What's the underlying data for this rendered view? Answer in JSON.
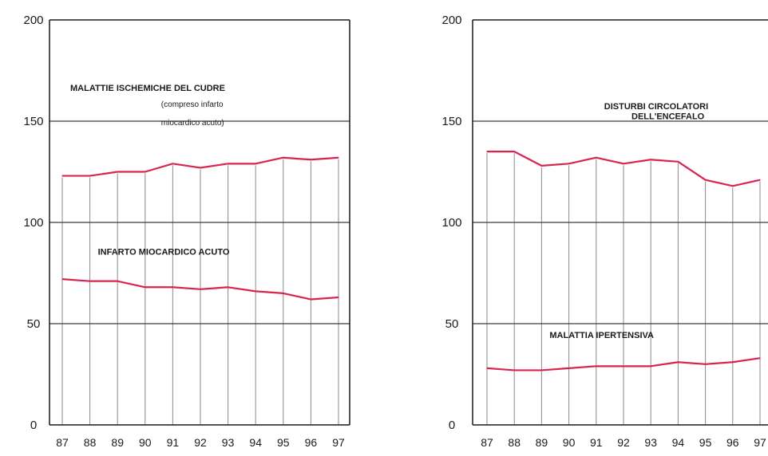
{
  "chart_data": [
    {
      "type": "line",
      "x": [
        "87",
        "88",
        "89",
        "90",
        "91",
        "92",
        "93",
        "94",
        "95",
        "96",
        "97"
      ],
      "ylim": [
        0,
        200
      ],
      "yticks": [
        "0",
        "50",
        "100",
        "150",
        "200"
      ],
      "grid": "horizontal lines at 50, 100, 150; vertical lines at each year",
      "series": [
        {
          "name": "MALATTIE ISCHEMICHE DEL CUORE (compreso infarto miocardico acuto)",
          "values": [
            123,
            123,
            125,
            125,
            129,
            127,
            129,
            129,
            132,
            131,
            132
          ]
        },
        {
          "name": "INFARTO MIOCARDICO ACUTO",
          "values": [
            72,
            71,
            71,
            68,
            68,
            67,
            68,
            66,
            65,
            62,
            63
          ]
        }
      ],
      "annotations": [
        {
          "text": "MALATTIE ISCHEMICHE DEL CUDRE",
          "at_x": "87",
          "at_y": 165
        },
        {
          "text": "(compreso infarto",
          "at_x": "90",
          "at_y": 157
        },
        {
          "text": "miocardico acuto)",
          "at_x": "90",
          "at_y": 148
        },
        {
          "text": "INFARTO MIOCARDICO ACUTO",
          "at_x": "88",
          "at_y": 84
        }
      ]
    },
    {
      "type": "line",
      "x": [
        "87",
        "88",
        "89",
        "90",
        "91",
        "92",
        "93",
        "94",
        "95",
        "96",
        "97"
      ],
      "ylim": [
        0,
        200
      ],
      "yticks": [
        "0",
        "50",
        "100",
        "150",
        "200"
      ],
      "grid": "horizontal lines at 50, 100, 150; vertical lines at each year",
      "series": [
        {
          "name": "DISTURBI CIRCOLATORI DELL'ENCEFALO",
          "values": [
            135,
            135,
            128,
            129,
            132,
            129,
            131,
            130,
            121,
            118,
            121
          ]
        },
        {
          "name": "MALATTIA IPERTENSIVA",
          "values": [
            28,
            27,
            27,
            28,
            29,
            29,
            29,
            31,
            30,
            31,
            33
          ]
        }
      ],
      "annotations": [
        {
          "text": "DISTURBI CIRCOLATORI",
          "at_x": "91",
          "at_y": 156
        },
        {
          "text": "DELL'ENCEFALO",
          "at_x": "92",
          "at_y": 151
        },
        {
          "text": "MALATTIA IPERTENSIVA",
          "at_x": "89",
          "at_y": 43
        }
      ]
    }
  ],
  "colors": {
    "series": "#d8244e",
    "axis": "#1a1a1a",
    "gridline": "#3a3a3a",
    "guide": "#8a8a8a"
  }
}
